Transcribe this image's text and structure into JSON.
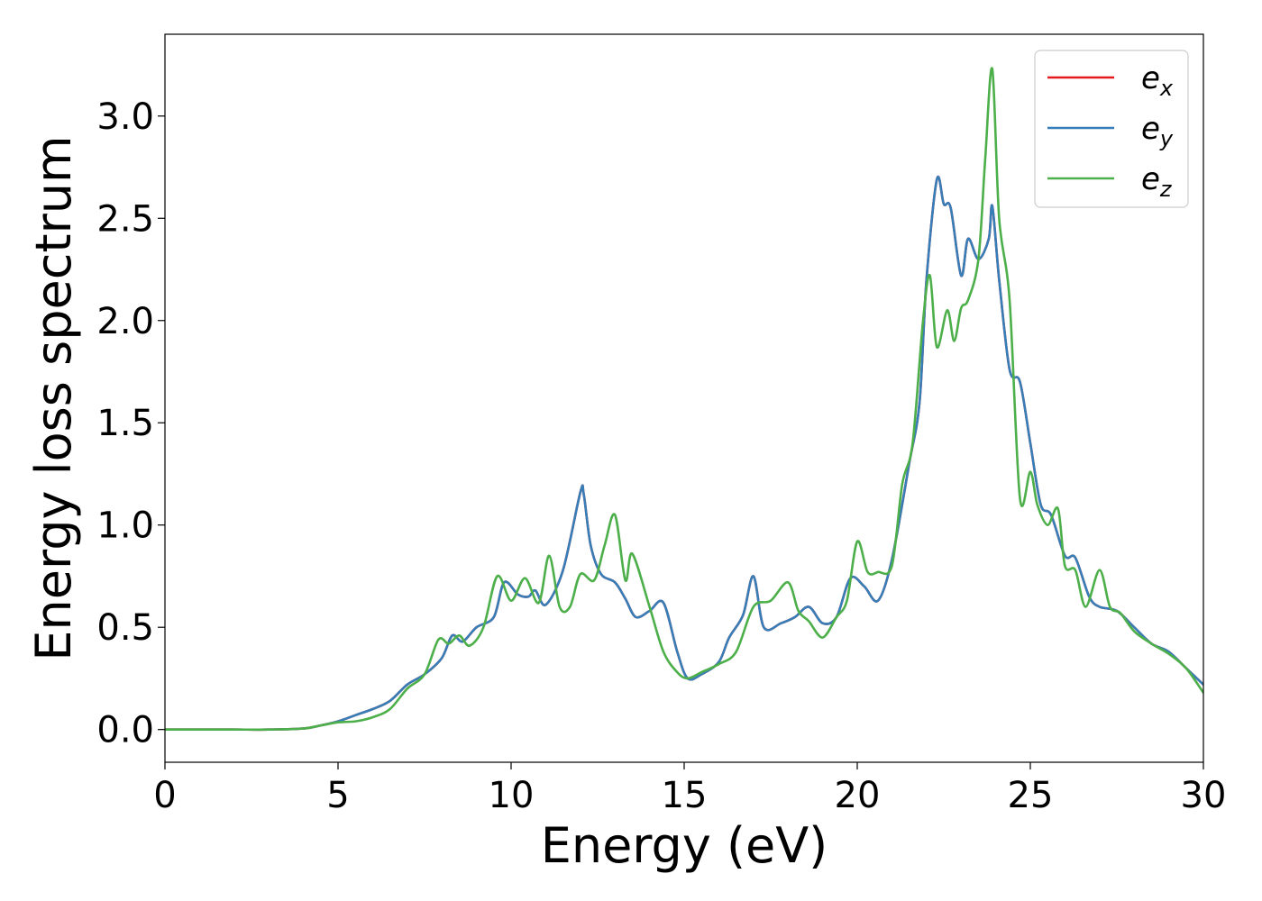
{
  "chart_data": {
    "type": "line",
    "title": "",
    "xlabel": "Energy (eV)",
    "ylabel": "Energy loss spectrum",
    "xlim": [
      0,
      30
    ],
    "ylim": [
      -0.16,
      3.4
    ],
    "xticks": [
      0,
      5,
      10,
      15,
      20,
      25,
      30
    ],
    "xtick_labels": [
      "0",
      "5",
      "10",
      "15",
      "20",
      "25",
      "30"
    ],
    "yticks": [
      0.0,
      0.5,
      1.0,
      1.5,
      2.0,
      2.5,
      3.0
    ],
    "ytick_labels": [
      "0.0",
      "0.5",
      "1.0",
      "1.5",
      "2.0",
      "2.5",
      "3.0"
    ],
    "grid": false,
    "legend_position": "top-right",
    "series": [
      {
        "name": "e_x",
        "legend_base": "e",
        "legend_sub": "x",
        "color": "#e41a1c",
        "x": [
          0,
          1,
          2,
          3,
          4,
          4.5,
          5,
          5.5,
          6,
          6.5,
          7,
          7.5,
          8,
          8.3,
          8.6,
          9,
          9.5,
          9.8,
          10.2,
          10.5,
          10.7,
          11,
          11.5,
          12,
          12.1,
          12.3,
          12.6,
          13,
          13.3,
          13.6,
          14,
          14.4,
          14.8,
          15.1,
          15.5,
          16,
          16.3,
          16.7,
          17,
          17.3,
          17.8,
          18.2,
          18.6,
          19,
          19.4,
          19.8,
          20.2,
          20.6,
          21,
          21.5,
          21.8,
          22,
          22.3,
          22.5,
          22.7,
          23,
          23.2,
          23.5,
          23.8,
          23.9,
          24.1,
          24.4,
          24.7,
          25,
          25.3,
          25.6,
          26,
          26.3,
          26.7,
          27,
          27.5,
          28,
          28.5,
          29,
          29.5,
          30
        ],
        "y": [
          0.0,
          0.0,
          0.0,
          0.0,
          0.005,
          0.02,
          0.04,
          0.07,
          0.1,
          0.14,
          0.22,
          0.27,
          0.35,
          0.46,
          0.43,
          0.5,
          0.55,
          0.72,
          0.66,
          0.65,
          0.68,
          0.61,
          0.78,
          1.16,
          1.15,
          0.9,
          0.76,
          0.72,
          0.64,
          0.55,
          0.58,
          0.62,
          0.38,
          0.25,
          0.27,
          0.33,
          0.45,
          0.56,
          0.75,
          0.5,
          0.52,
          0.55,
          0.6,
          0.52,
          0.55,
          0.74,
          0.7,
          0.63,
          0.83,
          1.3,
          1.6,
          2.2,
          2.69,
          2.57,
          2.55,
          2.22,
          2.4,
          2.3,
          2.4,
          2.56,
          2.2,
          1.76,
          1.7,
          1.4,
          1.1,
          1.05,
          0.85,
          0.84,
          0.65,
          0.6,
          0.58,
          0.5,
          0.42,
          0.38,
          0.3,
          0.22
        ]
      },
      {
        "name": "e_y",
        "legend_base": "e",
        "legend_sub": "y",
        "color": "#377eb8",
        "x": [
          0,
          1,
          2,
          3,
          4,
          4.5,
          5,
          5.5,
          6,
          6.5,
          7,
          7.5,
          8,
          8.3,
          8.6,
          9,
          9.5,
          9.8,
          10.2,
          10.5,
          10.7,
          11,
          11.5,
          12,
          12.1,
          12.3,
          12.6,
          13,
          13.3,
          13.6,
          14,
          14.4,
          14.8,
          15.1,
          15.5,
          16,
          16.3,
          16.7,
          17,
          17.3,
          17.8,
          18.2,
          18.6,
          19,
          19.4,
          19.8,
          20.2,
          20.6,
          21,
          21.5,
          21.8,
          22,
          22.3,
          22.5,
          22.7,
          23,
          23.2,
          23.5,
          23.8,
          23.9,
          24.1,
          24.4,
          24.7,
          25,
          25.3,
          25.6,
          26,
          26.3,
          26.7,
          27,
          27.5,
          28,
          28.5,
          29,
          29.5,
          30
        ],
        "y": [
          0.0,
          0.0,
          0.0,
          0.0,
          0.005,
          0.02,
          0.04,
          0.07,
          0.1,
          0.14,
          0.22,
          0.27,
          0.35,
          0.46,
          0.43,
          0.5,
          0.55,
          0.72,
          0.66,
          0.65,
          0.68,
          0.61,
          0.78,
          1.16,
          1.15,
          0.9,
          0.76,
          0.72,
          0.64,
          0.55,
          0.58,
          0.62,
          0.38,
          0.25,
          0.27,
          0.33,
          0.45,
          0.56,
          0.75,
          0.5,
          0.52,
          0.55,
          0.6,
          0.52,
          0.55,
          0.74,
          0.7,
          0.63,
          0.83,
          1.3,
          1.6,
          2.2,
          2.69,
          2.57,
          2.55,
          2.22,
          2.4,
          2.3,
          2.4,
          2.56,
          2.2,
          1.76,
          1.7,
          1.4,
          1.1,
          1.05,
          0.85,
          0.84,
          0.65,
          0.6,
          0.58,
          0.5,
          0.42,
          0.38,
          0.3,
          0.22
        ]
      },
      {
        "name": "e_z",
        "legend_base": "e",
        "legend_sub": "z",
        "color": "#4daf4a",
        "x": [
          0,
          1,
          2,
          3,
          4,
          4.5,
          5,
          5.5,
          6,
          6.5,
          7,
          7.5,
          7.9,
          8.2,
          8.5,
          8.8,
          9.2,
          9.6,
          10,
          10.4,
          10.8,
          11.1,
          11.4,
          11.7,
          12,
          12.4,
          12.7,
          13,
          13.3,
          13.5,
          14,
          14.4,
          14.8,
          15.1,
          15.5,
          16,
          16.5,
          17,
          17.5,
          18,
          18.3,
          18.6,
          19,
          19.4,
          19.7,
          20,
          20.3,
          20.6,
          21,
          21.3,
          21.6,
          21.9,
          22.1,
          22.3,
          22.6,
          22.8,
          23,
          23.2,
          23.5,
          23.7,
          23.9,
          24.1,
          24.4,
          24.7,
          25,
          25.2,
          25.5,
          25.8,
          26,
          26.3,
          26.6,
          27,
          27.3,
          27.6,
          28,
          28.5,
          29,
          29.5,
          30
        ],
        "y": [
          0.0,
          0.0,
          0.0,
          0.0,
          0.005,
          0.02,
          0.035,
          0.04,
          0.06,
          0.1,
          0.2,
          0.27,
          0.44,
          0.42,
          0.46,
          0.41,
          0.5,
          0.75,
          0.63,
          0.74,
          0.62,
          0.85,
          0.6,
          0.6,
          0.76,
          0.73,
          0.9,
          1.05,
          0.73,
          0.86,
          0.6,
          0.38,
          0.28,
          0.25,
          0.28,
          0.32,
          0.38,
          0.6,
          0.63,
          0.72,
          0.58,
          0.53,
          0.45,
          0.55,
          0.63,
          0.92,
          0.77,
          0.77,
          0.8,
          1.2,
          1.4,
          2.0,
          2.22,
          1.87,
          2.05,
          1.9,
          2.06,
          2.1,
          2.3,
          2.8,
          3.23,
          2.5,
          2.1,
          1.13,
          1.26,
          1.1,
          1.0,
          1.08,
          0.8,
          0.78,
          0.6,
          0.78,
          0.6,
          0.57,
          0.48,
          0.42,
          0.37,
          0.3,
          0.18
        ]
      }
    ]
  }
}
